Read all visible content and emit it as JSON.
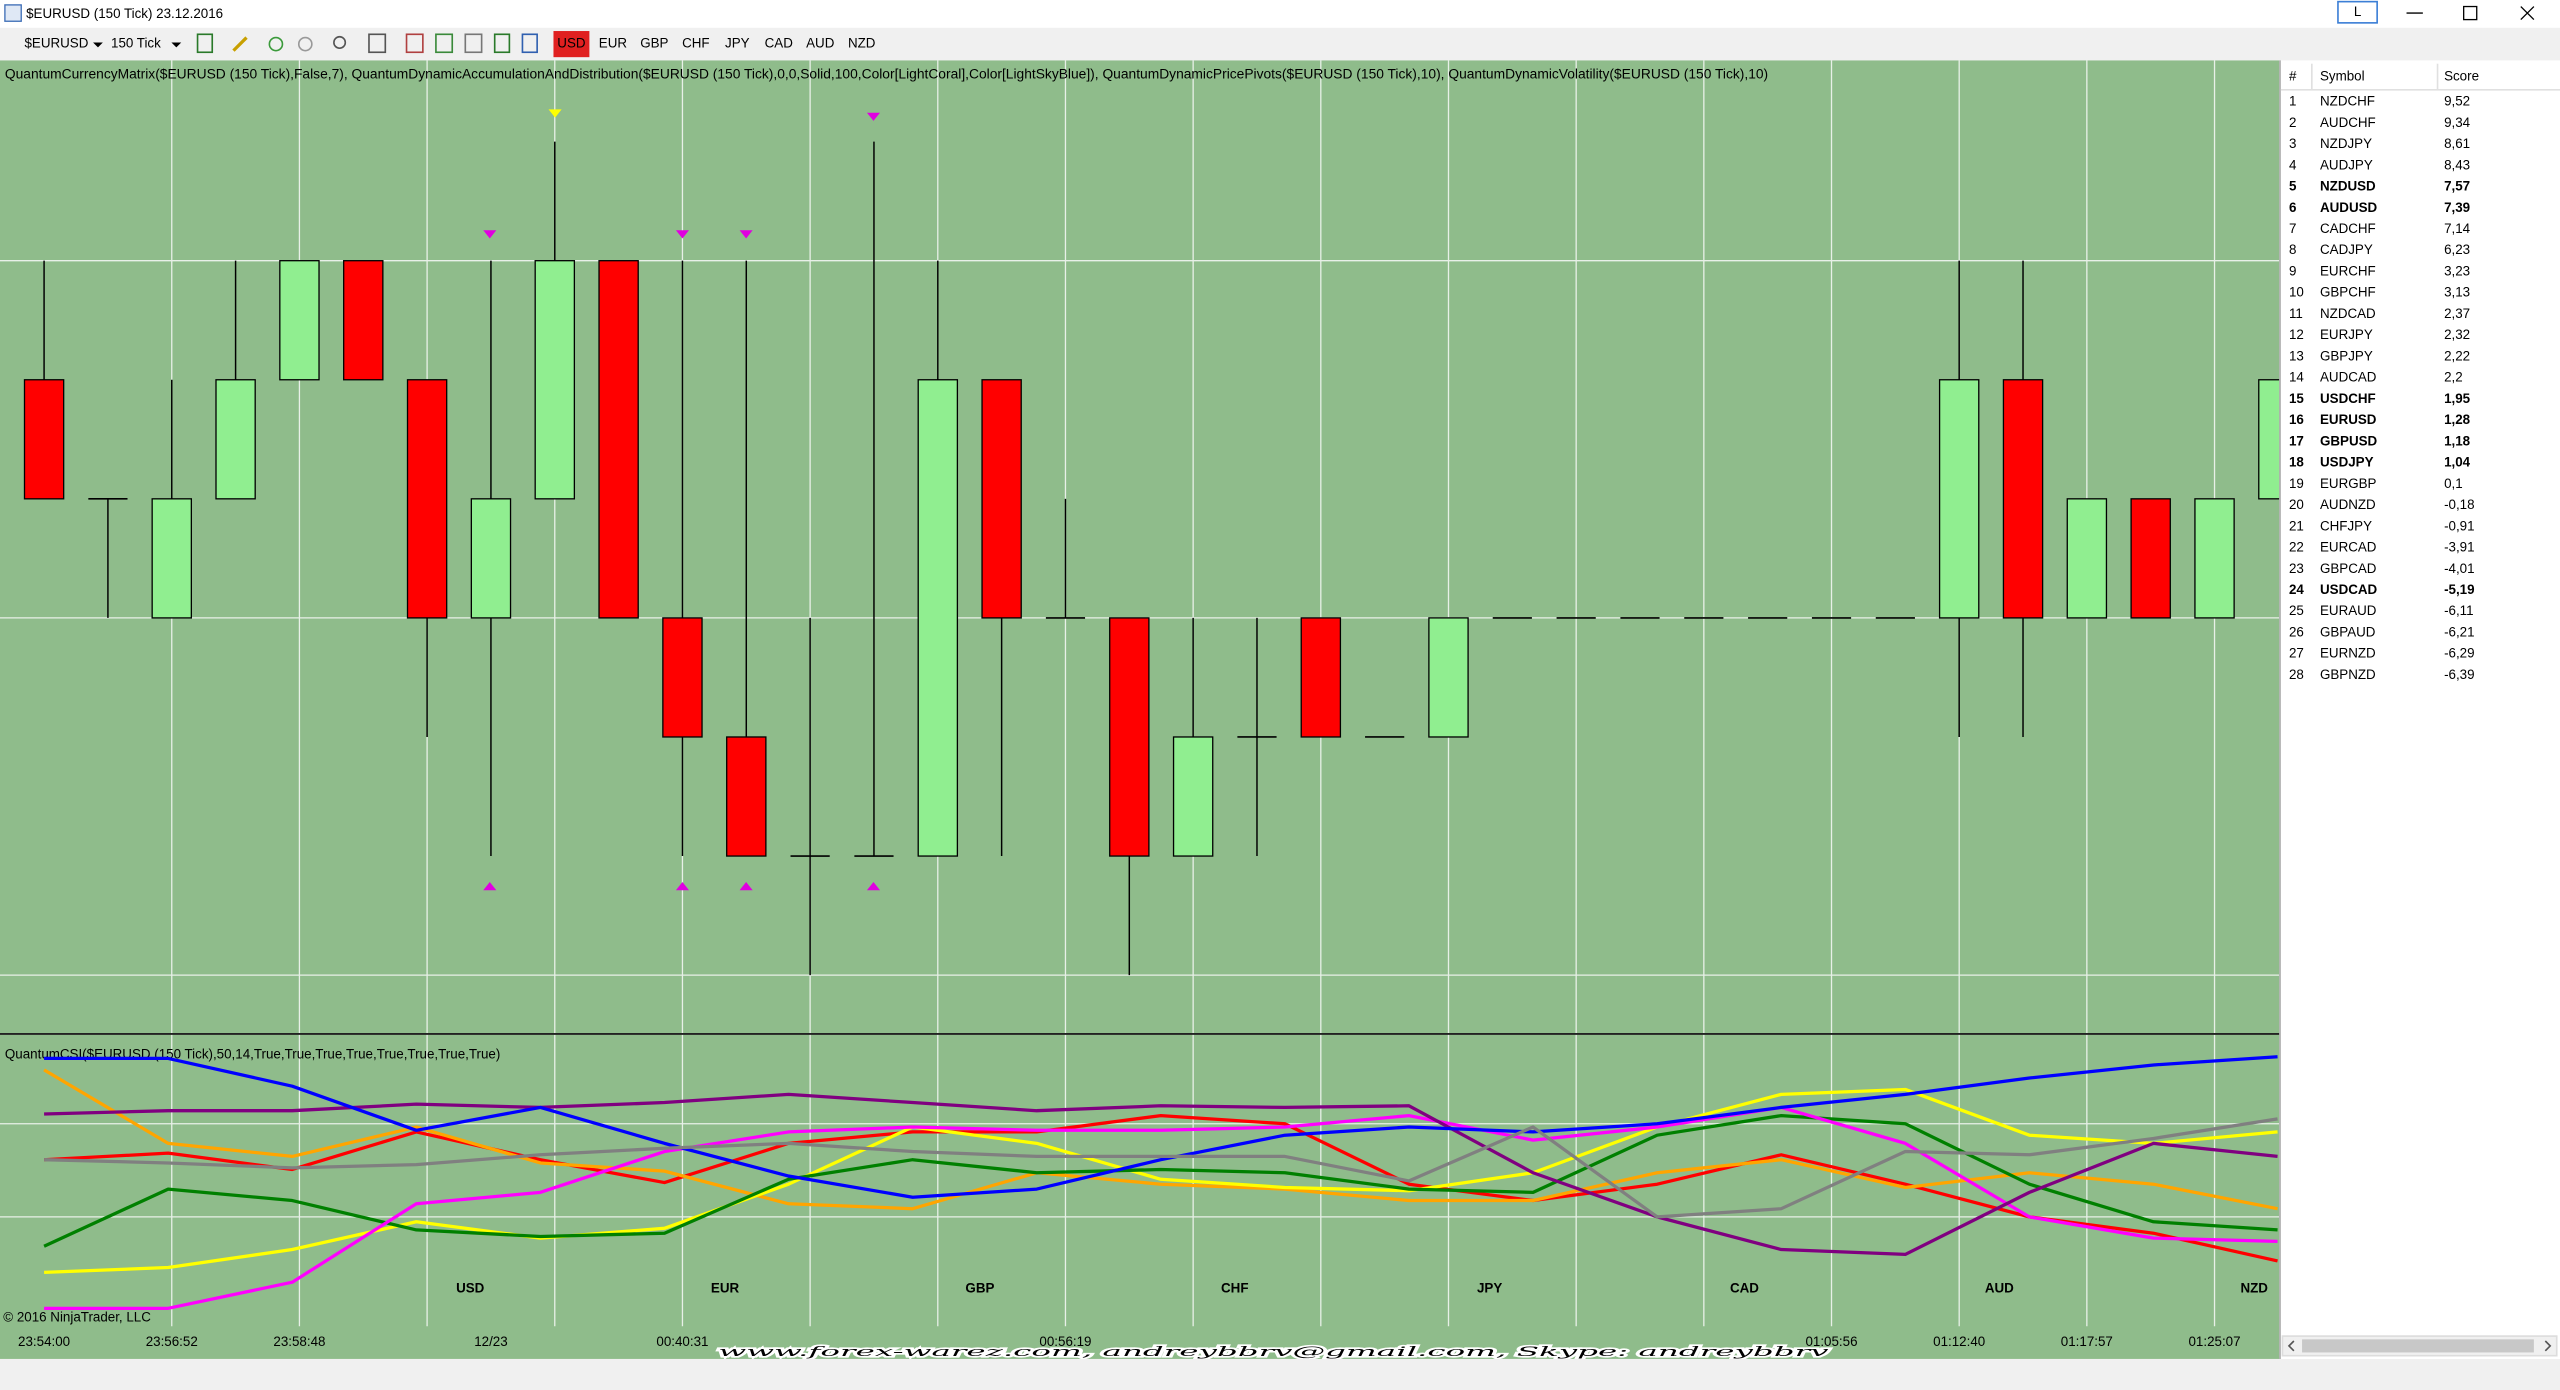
{
  "window": {
    "title": "$EURUSD (150 Tick)  23.12.2016",
    "button": "L"
  },
  "toolbar": {
    "instrument": "$EURUSD",
    "period": "150 Tick",
    "currencies": [
      "USD",
      "EUR",
      "GBP",
      "CHF",
      "JPY",
      "CAD",
      "AUD",
      "NZD"
    ],
    "active": "USD"
  },
  "indicators_label": "QuantumCurrencyMatrix($EURUSD (150 Tick),False,7), QuantumDynamicAccumulationAndDistribution($EURUSD (150 Tick),0,0,Solid,100,Color[LightCoral],Color[LightSkyBlue]), QuantumDynamicPricePivots($EURUSD (150 Tick),10), QuantumDynamicVolatility($EURUSD (150 Tick),10)",
  "candles": {
    "up_color": "#90ee90",
    "down_color": "#ff0000",
    "time": [
      "23:54:00",
      null,
      "23:56:52",
      null,
      "23:58:48",
      null,
      null,
      "12/23",
      null,
      null,
      "00:40:31",
      null,
      null,
      null,
      null,
      null,
      "00:56:19",
      null,
      null,
      null,
      null,
      null,
      null,
      null,
      null,
      null,
      null,
      null,
      "01:05:56",
      null,
      "01:12:40",
      null,
      "01:17:57",
      null,
      "01:25:07",
      null
    ],
    "open": [
      5,
      4,
      3,
      4,
      5,
      6,
      5,
      3,
      4,
      6,
      3,
      2,
      1,
      1,
      1,
      5,
      3,
      3,
      1,
      2,
      3,
      2,
      2,
      3,
      3,
      3,
      3,
      3,
      3,
      3,
      3,
      5,
      3,
      4,
      3,
      4
    ],
    "close": [
      4,
      4,
      4,
      5,
      6,
      5,
      3,
      4,
      6,
      3,
      2,
      1,
      1,
      1,
      5,
      3,
      3,
      1,
      2,
      2,
      2,
      2,
      3,
      3,
      3,
      3,
      3,
      3,
      3,
      3,
      5,
      3,
      4,
      3,
      4,
      5
    ],
    "high": [
      6,
      4,
      5,
      6,
      6,
      6,
      5,
      6,
      7,
      6,
      6,
      6,
      3,
      7,
      6,
      5,
      4,
      3,
      3,
      3,
      3,
      2,
      3,
      3,
      3,
      3,
      3,
      3,
      3,
      3,
      6,
      6,
      4,
      4,
      4,
      5
    ],
    "low": [
      4,
      3,
      3,
      4,
      5,
      5,
      2,
      1,
      4,
      3,
      1,
      1,
      0,
      1,
      1,
      1,
      3,
      0,
      1,
      1,
      2,
      2,
      2,
      3,
      3,
      3,
      3,
      3,
      3,
      3,
      2,
      2,
      3,
      3,
      3,
      4
    ]
  },
  "strength_panel": {
    "label": "QuantumCSI($EURUSD (150 Tick),50,14,True,True,True,True,True,True,True,True)",
    "series": [
      {
        "name": "USD",
        "color": "#ff0000",
        "values": [
          100,
          104,
          94,
          117,
          100,
          86,
          110,
          117,
          117,
          127,
          122,
          85,
          75,
          85,
          103,
          85,
          65,
          55,
          38
        ]
      },
      {
        "name": "EUR",
        "color": "#ffa500",
        "values": [
          155,
          110,
          102,
          120,
          98,
          93,
          73,
          70,
          92,
          85,
          82,
          75,
          75,
          92,
          100,
          83,
          92,
          85,
          70
        ]
      },
      {
        "name": "GBP",
        "color": "#ffff00",
        "values": [
          31,
          34,
          45,
          62,
          52,
          58,
          85,
          120,
          110,
          88,
          83,
          81,
          92,
          120,
          140,
          143,
          115,
          110,
          117
        ]
      },
      {
        "name": "CHF",
        "color": "#008000",
        "values": [
          47,
          82,
          75,
          57,
          53,
          55,
          88,
          100,
          92,
          94,
          92,
          82,
          80,
          115,
          127,
          122,
          85,
          62,
          57
        ]
      },
      {
        "name": "JPY",
        "color": "#ff00ff",
        "values": [
          9,
          9,
          25,
          73,
          80,
          105,
          117,
          120,
          118,
          118,
          120,
          127,
          112,
          120,
          132,
          110,
          65,
          52,
          50
        ]
      },
      {
        "name": "CAD",
        "color": "#800080",
        "values": [
          128,
          130,
          130,
          134,
          132,
          135,
          140,
          135,
          130,
          133,
          132,
          133,
          92,
          65,
          45,
          42,
          80,
          110,
          102
        ]
      },
      {
        "name": "AUD",
        "color": "#0000ff",
        "values": [
          162,
          162,
          145,
          118,
          132,
          110,
          90,
          77,
          82,
          100,
          115,
          120,
          117,
          122,
          132,
          140,
          150,
          158,
          163
        ]
      },
      {
        "name": "NZD",
        "color": "#808080",
        "values": [
          100,
          98,
          95,
          97,
          103,
          107,
          110,
          105,
          102,
          102,
          102,
          87,
          120,
          65,
          70,
          105,
          103,
          113,
          125
        ]
      }
    ]
  },
  "copyright": "© 2016 NinjaTrader, LLC",
  "watermark": "www.forex-warez.com, andreybbrv@gmail.com, Skype: andreybbrv",
  "ranking": {
    "columns": [
      "#",
      "Symbol",
      "Score"
    ],
    "rows": [
      {
        "rank": 1,
        "symbol": "NZDCHF",
        "score": "9,52"
      },
      {
        "rank": 2,
        "symbol": "AUDCHF",
        "score": "9,34"
      },
      {
        "rank": 3,
        "symbol": "NZDJPY",
        "score": "8,61"
      },
      {
        "rank": 4,
        "symbol": "AUDJPY",
        "score": "8,43"
      },
      {
        "rank": 5,
        "symbol": "NZDUSD",
        "score": "7,57",
        "color": "#2e5ee0"
      },
      {
        "rank": 6,
        "symbol": "AUDUSD",
        "score": "7,39",
        "color": "#2e5ee0"
      },
      {
        "rank": 7,
        "symbol": "CADCHF",
        "score": "7,14"
      },
      {
        "rank": 8,
        "symbol": "CADJPY",
        "score": "6,23"
      },
      {
        "rank": 9,
        "symbol": "EURCHF",
        "score": "3,23"
      },
      {
        "rank": 10,
        "symbol": "GBPCHF",
        "score": "3,13"
      },
      {
        "rank": 11,
        "symbol": "NZDCAD",
        "score": "2,37"
      },
      {
        "rank": 12,
        "symbol": "EURJPY",
        "score": "2,32"
      },
      {
        "rank": 13,
        "symbol": "GBPJPY",
        "score": "2,22"
      },
      {
        "rank": 14,
        "symbol": "AUDCAD",
        "score": "2,2"
      },
      {
        "rank": 15,
        "symbol": "USDCHF",
        "score": "1,95",
        "color": "#2e5ee0"
      },
      {
        "rank": 16,
        "symbol": "EURUSD",
        "score": "1,28",
        "color": "#2e5ee0"
      },
      {
        "rank": 17,
        "symbol": "GBPUSD",
        "score": "1,18",
        "color": "#2e5ee0"
      },
      {
        "rank": 18,
        "symbol": "USDJPY",
        "score": "1,04",
        "color": "#2e5ee0"
      },
      {
        "rank": 19,
        "symbol": "EURGBP",
        "score": "0,1"
      },
      {
        "rank": 20,
        "symbol": "AUDNZD",
        "score": "-0,18"
      },
      {
        "rank": 21,
        "symbol": "CHFJPY",
        "score": "-0,91"
      },
      {
        "rank": 22,
        "symbol": "EURCAD",
        "score": "-3,91"
      },
      {
        "rank": 23,
        "symbol": "GBPCAD",
        "score": "-4,01"
      },
      {
        "rank": 24,
        "symbol": "USDCAD",
        "score": "-5,19",
        "color": "#e0103a"
      },
      {
        "rank": 25,
        "symbol": "EURAUD",
        "score": "-6,11"
      },
      {
        "rank": 26,
        "symbol": "GBPAUD",
        "score": "-6,21"
      },
      {
        "rank": 27,
        "symbol": "EURNZD",
        "score": "-6,29"
      },
      {
        "rank": 28,
        "symbol": "GBPNZD",
        "score": "-6,39"
      }
    ]
  }
}
